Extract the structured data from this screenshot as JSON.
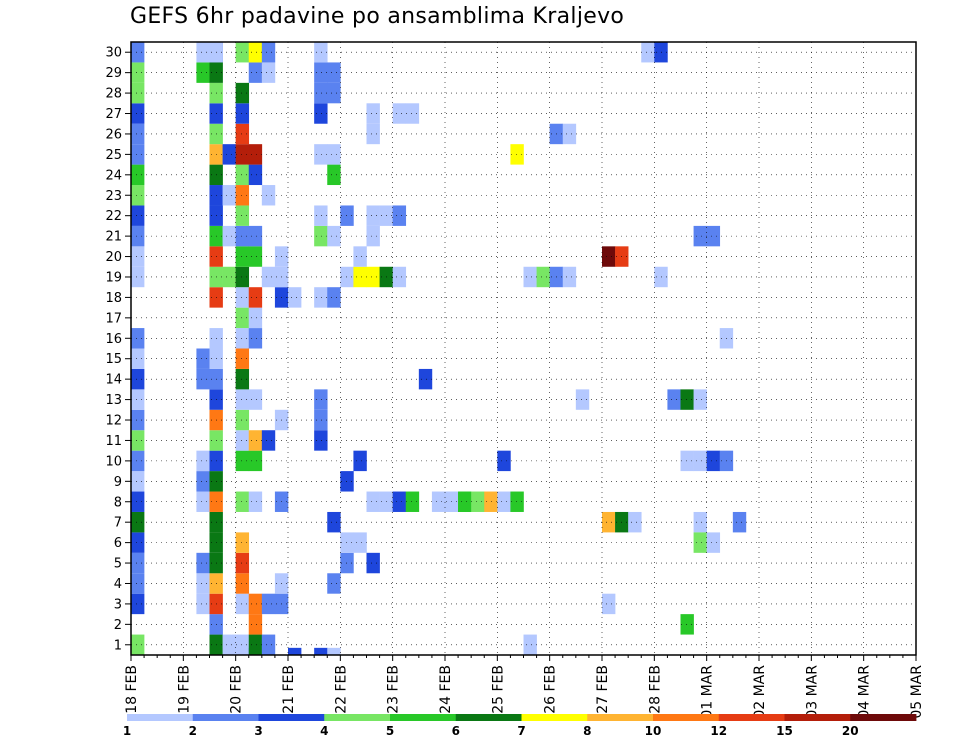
{
  "chart_data": {
    "type": "heatmap",
    "title": "GEFS 6hr padavine po ansamblima Kraljevo",
    "y_categories": [
      "1",
      "2",
      "3",
      "4",
      "5",
      "6",
      "7",
      "8",
      "9",
      "10",
      "11",
      "12",
      "13",
      "14",
      "15",
      "16",
      "17",
      "18",
      "19",
      "20",
      "21",
      "22",
      "23",
      "24",
      "25",
      "26",
      "27",
      "28",
      "29",
      "30"
    ],
    "x_ticks": [
      "18 FEB",
      "19 FEB",
      "20 FEB",
      "21 FEB",
      "22 FEB",
      "23 FEB",
      "24 FEB",
      "25 FEB",
      "26 FEB",
      "27 FEB",
      "28 FEB",
      "01 MAR",
      "02 MAR",
      "03 MAR",
      "04 MAR",
      "05 MAR"
    ],
    "time_step": "6hr",
    "grid": "dotted",
    "colorbar": {
      "labels": [
        "1",
        "2",
        "3",
        "4",
        "5",
        "6",
        "7",
        "8",
        "10",
        "12",
        "15",
        "20"
      ],
      "colors": [
        "#b4c8ff",
        "#5a82f0",
        "#1e46dc",
        "#78e664",
        "#28c828",
        "#0a7814",
        "#ffff00",
        "#ffb432",
        "#ff7814",
        "#e63c14",
        "#b41e0a",
        "#6e0a0a"
      ]
    },
    "cells": [
      [
        0,
        1,
        4
      ],
      [
        0,
        3,
        3
      ],
      [
        0,
        4,
        2
      ],
      [
        0,
        5,
        2
      ],
      [
        0,
        6,
        3
      ],
      [
        0,
        7,
        6
      ],
      [
        0,
        8,
        3
      ],
      [
        0,
        9,
        1
      ],
      [
        0,
        10,
        2
      ],
      [
        0,
        11,
        4
      ],
      [
        0,
        12,
        2
      ],
      [
        0,
        13,
        1
      ],
      [
        0,
        14,
        3
      ],
      [
        0,
        15,
        1
      ],
      [
        0,
        16,
        2
      ],
      [
        0,
        19,
        1
      ],
      [
        0,
        20,
        1
      ],
      [
        0,
        21,
        2
      ],
      [
        0,
        22,
        3
      ],
      [
        0,
        23,
        4
      ],
      [
        0,
        24,
        5
      ],
      [
        0,
        25,
        2
      ],
      [
        0,
        26,
        2
      ],
      [
        0,
        27,
        3
      ],
      [
        0,
        28,
        4
      ],
      [
        0,
        29,
        4
      ],
      [
        0,
        30,
        2
      ],
      [
        5,
        29,
        5
      ],
      [
        5,
        30,
        1
      ],
      [
        6,
        30,
        2
      ],
      [
        5,
        3,
        1
      ],
      [
        5,
        4,
        1
      ],
      [
        5,
        5,
        2
      ],
      [
        5,
        8,
        1
      ],
      [
        5,
        9,
        2
      ],
      [
        5,
        10,
        1
      ],
      [
        5,
        14,
        2
      ],
      [
        5,
        15,
        2
      ],
      [
        6,
        0,
        9
      ],
      [
        6,
        1,
        6
      ],
      [
        6,
        2,
        2
      ],
      [
        6,
        3,
        10
      ],
      [
        6,
        4,
        8
      ],
      [
        6,
        5,
        6
      ],
      [
        6,
        6,
        6
      ],
      [
        6,
        7,
        6
      ],
      [
        6,
        8,
        9
      ],
      [
        6,
        9,
        6
      ],
      [
        6,
        10,
        3
      ],
      [
        6,
        11,
        4
      ],
      [
        6,
        12,
        9
      ],
      [
        6,
        13,
        3
      ],
      [
        6,
        14,
        2
      ],
      [
        6,
        15,
        1
      ],
      [
        6,
        16,
        1
      ],
      [
        6,
        18,
        10
      ],
      [
        6,
        19,
        4
      ],
      [
        6,
        20,
        10
      ],
      [
        6,
        21,
        5
      ],
      [
        6,
        22,
        3
      ],
      [
        6,
        23,
        3
      ],
      [
        6,
        24,
        6
      ],
      [
        6,
        25,
        8
      ],
      [
        6,
        26,
        4
      ],
      [
        6,
        27,
        3
      ],
      [
        6,
        28,
        4
      ],
      [
        6,
        29,
        6
      ],
      [
        6,
        30,
        1
      ],
      [
        7,
        0,
        6
      ],
      [
        7,
        1,
        1
      ],
      [
        7,
        19,
        4
      ],
      [
        7,
        21,
        1
      ],
      [
        7,
        23,
        1
      ],
      [
        7,
        25,
        3
      ],
      [
        8,
        1,
        1
      ],
      [
        8,
        3,
        1
      ],
      [
        8,
        4,
        9
      ],
      [
        8,
        5,
        10
      ],
      [
        8,
        6,
        8
      ],
      [
        8,
        8,
        4
      ],
      [
        8,
        10,
        5
      ],
      [
        8,
        11,
        1
      ],
      [
        8,
        12,
        4
      ],
      [
        8,
        13,
        1
      ],
      [
        8,
        14,
        6
      ],
      [
        8,
        15,
        9
      ],
      [
        8,
        16,
        1
      ],
      [
        8,
        17,
        4
      ],
      [
        8,
        18,
        1
      ],
      [
        8,
        19,
        6
      ],
      [
        8,
        20,
        5
      ],
      [
        8,
        21,
        2
      ],
      [
        8,
        22,
        4
      ],
      [
        8,
        23,
        9
      ],
      [
        8,
        24,
        4
      ],
      [
        8,
        25,
        11
      ],
      [
        8,
        26,
        10
      ],
      [
        8,
        27,
        3
      ],
      [
        8,
        28,
        6
      ],
      [
        8,
        30,
        4
      ],
      [
        9,
        0,
        2
      ],
      [
        9,
        1,
        6
      ],
      [
        9,
        2,
        9
      ],
      [
        9,
        3,
        9
      ],
      [
        9,
        8,
        1
      ],
      [
        9,
        10,
        5
      ],
      [
        9,
        11,
        8
      ],
      [
        9,
        13,
        1
      ],
      [
        9,
        16,
        2
      ],
      [
        9,
        17,
        1
      ],
      [
        9,
        18,
        10
      ],
      [
        9,
        20,
        5
      ],
      [
        9,
        21,
        2
      ],
      [
        9,
        24,
        3
      ],
      [
        9,
        25,
        11
      ],
      [
        9,
        29,
        2
      ],
      [
        9,
        30,
        7
      ],
      [
        10,
        1,
        2
      ],
      [
        10,
        3,
        2
      ],
      [
        10,
        11,
        3
      ],
      [
        10,
        19,
        1
      ],
      [
        10,
        23,
        1
      ],
      [
        10,
        29,
        1
      ],
      [
        10,
        30,
        2
      ],
      [
        11,
        3,
        2
      ],
      [
        11,
        8,
        2
      ],
      [
        11,
        20,
        1
      ],
      [
        11,
        4,
        1
      ],
      [
        11,
        12,
        1
      ],
      [
        11,
        18,
        3
      ],
      [
        11,
        19,
        1
      ],
      [
        12,
        0,
        3
      ],
      [
        12,
        18,
        1
      ],
      [
        14,
        0,
        3
      ],
      [
        14,
        11,
        3
      ],
      [
        14,
        12,
        2
      ],
      [
        14,
        13,
        2
      ],
      [
        14,
        18,
        1
      ],
      [
        14,
        21,
        4
      ],
      [
        14,
        22,
        1
      ],
      [
        14,
        25,
        1
      ],
      [
        14,
        27,
        3
      ],
      [
        14,
        28,
        2
      ],
      [
        14,
        29,
        2
      ],
      [
        14,
        30,
        1
      ],
      [
        15,
        0,
        1
      ],
      [
        15,
        4,
        2
      ],
      [
        15,
        7,
        3
      ],
      [
        15,
        18,
        2
      ],
      [
        15,
        21,
        1
      ],
      [
        15,
        24,
        5
      ],
      [
        15,
        25,
        1
      ],
      [
        15,
        28,
        2
      ],
      [
        15,
        29,
        2
      ],
      [
        16,
        5,
        2
      ],
      [
        16,
        6,
        1
      ],
      [
        16,
        9,
        3
      ],
      [
        16,
        22,
        2
      ],
      [
        16,
        19,
        1
      ],
      [
        17,
        6,
        1
      ],
      [
        17,
        10,
        3
      ],
      [
        17,
        19,
        7
      ],
      [
        17,
        20,
        1
      ],
      [
        18,
        5,
        3
      ],
      [
        18,
        8,
        1
      ],
      [
        18,
        19,
        7
      ],
      [
        18,
        21,
        1
      ],
      [
        18,
        22,
        1
      ],
      [
        18,
        26,
        1
      ],
      [
        18,
        27,
        1
      ],
      [
        19,
        8,
        1
      ],
      [
        19,
        19,
        6
      ],
      [
        19,
        22,
        1
      ],
      [
        20,
        8,
        3
      ],
      [
        20,
        19,
        1
      ],
      [
        20,
        22,
        2
      ],
      [
        20,
        27,
        1
      ],
      [
        21,
        8,
        5
      ],
      [
        21,
        27,
        1
      ],
      [
        22,
        14,
        3
      ],
      [
        23,
        8,
        1
      ],
      [
        24,
        8,
        1
      ],
      [
        24,
        8,
        1
      ],
      [
        25,
        8,
        5
      ],
      [
        25,
        8,
        5
      ],
      [
        26,
        8,
        4
      ],
      [
        27,
        8,
        8
      ],
      [
        28,
        8,
        1
      ],
      [
        28,
        10,
        3
      ],
      [
        29,
        8,
        5
      ],
      [
        29,
        25,
        7
      ],
      [
        30,
        1,
        1
      ],
      [
        30,
        19,
        1
      ],
      [
        31,
        19,
        4
      ],
      [
        32,
        19,
        2
      ],
      [
        32,
        26,
        2
      ],
      [
        33,
        19,
        1
      ],
      [
        33,
        26,
        1
      ],
      [
        34,
        13,
        1
      ],
      [
        36,
        7,
        8
      ],
      [
        36,
        20,
        12
      ],
      [
        36,
        3,
        1
      ],
      [
        37,
        7,
        6
      ],
      [
        37,
        20,
        10
      ],
      [
        38,
        7,
        1
      ],
      [
        39,
        30,
        1
      ],
      [
        40,
        30,
        3
      ],
      [
        40,
        19,
        1
      ],
      [
        41,
        13,
        2
      ],
      [
        42,
        2,
        5
      ],
      [
        42,
        13,
        6
      ],
      [
        42,
        10,
        1
      ],
      [
        43,
        13,
        1
      ],
      [
        43,
        10,
        1
      ],
      [
        43,
        7,
        1
      ],
      [
        43,
        6,
        4
      ],
      [
        43,
        21,
        2
      ],
      [
        44,
        21,
        2
      ],
      [
        44,
        10,
        3
      ],
      [
        44,
        6,
        1
      ],
      [
        45,
        10,
        2
      ],
      [
        45,
        16,
        1
      ],
      [
        46,
        7,
        2
      ]
    ]
  }
}
